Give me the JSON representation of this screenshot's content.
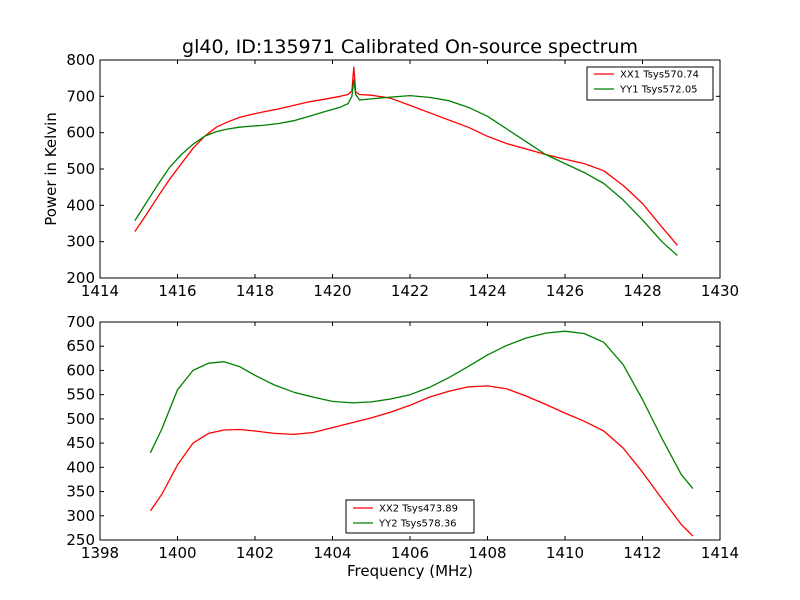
{
  "figure": {
    "title": "gl40, ID:135971 Calibrated On-source spectrum"
  },
  "chart_data": [
    {
      "type": "line",
      "title": "gl40, ID:135971 Calibrated On-source spectrum",
      "xlabel": "",
      "ylabel": "Power in Kelvin",
      "xlim": [
        1414,
        1430
      ],
      "ylim": [
        200,
        800
      ],
      "xticks": [
        "1414",
        "1416",
        "1418",
        "1420",
        "1422",
        "1424",
        "1426",
        "1428",
        "1430"
      ],
      "yticks": [
        "200",
        "300",
        "400",
        "500",
        "600",
        "700",
        "800"
      ],
      "grid": false,
      "legend_position": "upper right",
      "series": [
        {
          "name": "XX1 Tsys570.74",
          "color": "#ff0000",
          "x": [
            1414.9,
            1415.2,
            1415.5,
            1415.8,
            1416.1,
            1416.4,
            1416.7,
            1417.0,
            1417.3,
            1417.6,
            1417.9,
            1418.2,
            1418.6,
            1419.0,
            1419.4,
            1419.8,
            1420.2,
            1420.4,
            1420.5,
            1420.55,
            1420.6,
            1420.7,
            1421.0,
            1421.5,
            1422.0,
            1422.5,
            1423.0,
            1423.5,
            1424.0,
            1424.5,
            1425.0,
            1425.5,
            1426.0,
            1426.5,
            1427.0,
            1427.5,
            1428.0,
            1428.5,
            1428.9
          ],
          "y": [
            328,
            375,
            425,
            472,
            515,
            557,
            590,
            615,
            630,
            642,
            650,
            657,
            665,
            675,
            685,
            692,
            700,
            705,
            715,
            780,
            712,
            705,
            703,
            695,
            675,
            655,
            635,
            615,
            590,
            570,
            555,
            540,
            527,
            515,
            495,
            455,
            405,
            340,
            290
          ]
        },
        {
          "name": "YY1 Tsys572.05",
          "color": "#008000",
          "x": [
            1414.9,
            1415.2,
            1415.5,
            1415.8,
            1416.1,
            1416.4,
            1416.7,
            1417.0,
            1417.3,
            1417.6,
            1417.9,
            1418.2,
            1418.6,
            1419.0,
            1419.4,
            1419.8,
            1420.2,
            1420.4,
            1420.5,
            1420.55,
            1420.6,
            1420.7,
            1421.0,
            1421.5,
            1422.0,
            1422.5,
            1423.0,
            1423.5,
            1424.0,
            1424.5,
            1425.0,
            1425.5,
            1426.0,
            1426.5,
            1427.0,
            1427.5,
            1428.0,
            1428.5,
            1428.9
          ],
          "y": [
            358,
            408,
            458,
            505,
            540,
            568,
            590,
            603,
            610,
            615,
            618,
            620,
            625,
            633,
            645,
            658,
            670,
            680,
            700,
            745,
            705,
            690,
            693,
            698,
            702,
            697,
            688,
            670,
            645,
            610,
            575,
            540,
            515,
            490,
            460,
            415,
            360,
            300,
            262
          ]
        }
      ]
    },
    {
      "type": "line",
      "title": "",
      "xlabel": "Frequency (MHz)",
      "ylabel": "",
      "xlim": [
        1398,
        1414
      ],
      "ylim": [
        250,
        700
      ],
      "xticks": [
        "1398",
        "1400",
        "1402",
        "1404",
        "1406",
        "1408",
        "1410",
        "1412",
        "1414"
      ],
      "yticks": [
        "250",
        "300",
        "350",
        "400",
        "450",
        "500",
        "550",
        "600",
        "650",
        "700"
      ],
      "grid": false,
      "legend_position": "lower center",
      "series": [
        {
          "name": "XX2 Tsys473.89",
          "color": "#ff0000",
          "x": [
            1399.3,
            1399.6,
            1400.0,
            1400.4,
            1400.8,
            1401.2,
            1401.6,
            1402.0,
            1402.5,
            1403.0,
            1403.5,
            1404.0,
            1404.5,
            1405.0,
            1405.5,
            1406.0,
            1406.5,
            1407.0,
            1407.5,
            1408.0,
            1408.5,
            1409.0,
            1409.5,
            1410.0,
            1410.5,
            1411.0,
            1411.5,
            1412.0,
            1412.5,
            1413.0,
            1413.3
          ],
          "y": [
            310,
            345,
            405,
            450,
            470,
            477,
            478,
            475,
            470,
            468,
            472,
            482,
            492,
            502,
            514,
            528,
            545,
            557,
            566,
            568,
            562,
            547,
            530,
            512,
            495,
            475,
            440,
            390,
            335,
            282,
            258
          ]
        },
        {
          "name": "YY2 Tsys578.36",
          "color": "#008000",
          "x": [
            1399.3,
            1399.6,
            1400.0,
            1400.4,
            1400.8,
            1401.2,
            1401.6,
            1402.0,
            1402.5,
            1403.0,
            1403.5,
            1404.0,
            1404.5,
            1405.0,
            1405.5,
            1406.0,
            1406.5,
            1407.0,
            1407.5,
            1408.0,
            1408.5,
            1409.0,
            1409.5,
            1410.0,
            1410.5,
            1411.0,
            1411.5,
            1412.0,
            1412.5,
            1413.0,
            1413.3
          ],
          "y": [
            430,
            480,
            560,
            600,
            615,
            618,
            608,
            590,
            570,
            555,
            545,
            536,
            533,
            535,
            541,
            550,
            565,
            585,
            608,
            632,
            652,
            667,
            677,
            681,
            676,
            658,
            612,
            540,
            460,
            385,
            356
          ]
        }
      ]
    }
  ]
}
